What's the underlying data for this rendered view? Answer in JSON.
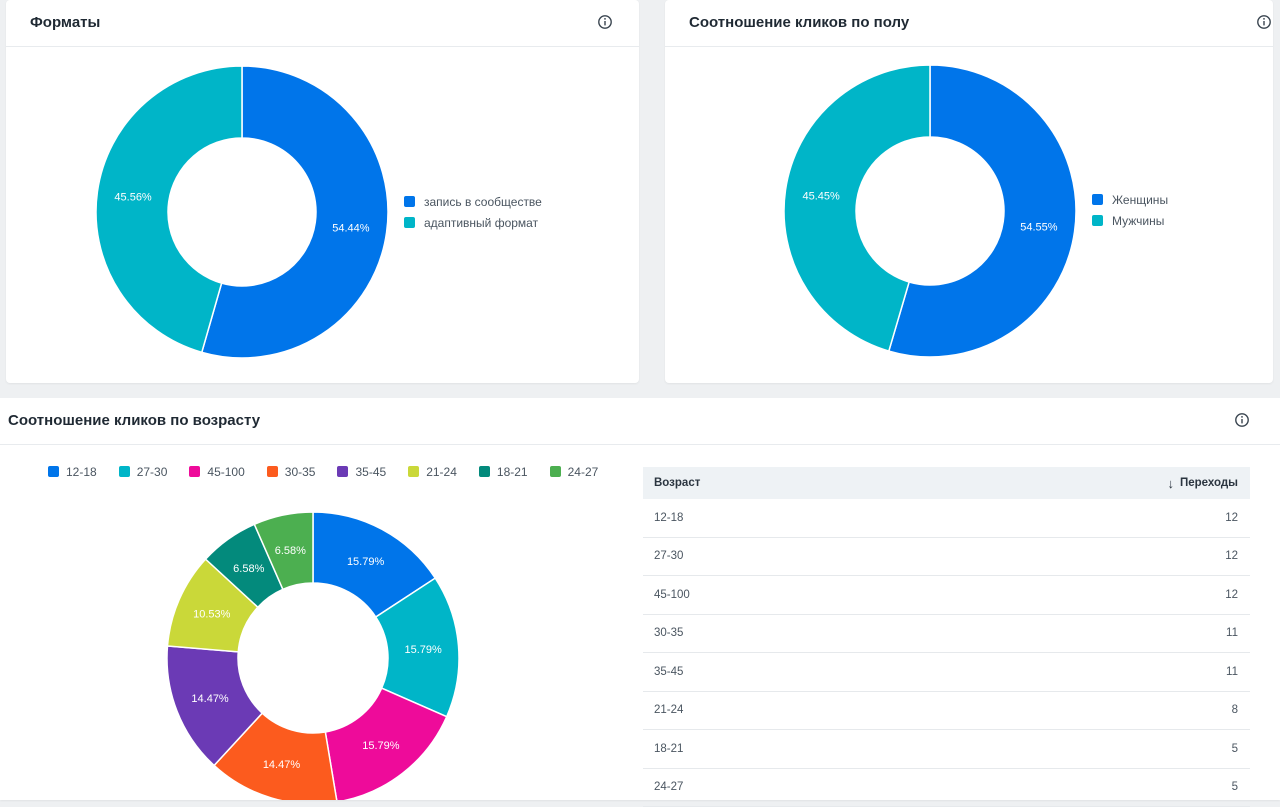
{
  "formats": {
    "title": "Форматы",
    "info_icon": "info-icon",
    "chart_data": {
      "type": "pie",
      "donut": true,
      "categories": [
        "запись в сообществе",
        "адаптивный формат"
      ],
      "values": [
        54.44,
        45.56
      ],
      "labels": [
        "54.44%",
        "45.56%"
      ],
      "colors": [
        "#0075ea",
        "#00b5c8"
      ],
      "legend_position": "right"
    }
  },
  "gender": {
    "title": "Соотношение кликов по полу",
    "info_icon": "info-icon",
    "chart_data": {
      "type": "pie",
      "donut": true,
      "categories": [
        "Женщины",
        "Мужчины"
      ],
      "values": [
        54.55,
        45.45
      ],
      "labels": [
        "54.55%",
        "45.45%"
      ],
      "colors": [
        "#0075ea",
        "#00b5c8"
      ],
      "legend_position": "right"
    }
  },
  "age": {
    "title": "Соотношение кликов по возрасту",
    "info_icon": "info-icon",
    "chart_data": {
      "type": "pie",
      "donut": true,
      "categories": [
        "12-18",
        "27-30",
        "45-100",
        "30-35",
        "35-45",
        "21-24",
        "18-21",
        "24-27"
      ],
      "values": [
        15.79,
        15.79,
        15.79,
        14.47,
        14.47,
        10.53,
        6.58,
        6.58
      ],
      "labels": [
        "15.79%",
        "15.79%",
        "15.79%",
        "14.47%",
        "14.47%",
        "10.53%",
        "6.58%",
        "6.58%"
      ],
      "colors": [
        "#0075ea",
        "#00b5c8",
        "#ee0b9a",
        "#fc5b1e",
        "#6b3ab5",
        "#cad839",
        "#038a7c",
        "#4caf50"
      ],
      "legend_position": "top"
    },
    "table": {
      "col_age": "Возраст",
      "col_clicks": "Переходы",
      "sort_icon": "arrow-down-icon",
      "rows": [
        {
          "age": "12-18",
          "clicks": "12"
        },
        {
          "age": "27-30",
          "clicks": "12"
        },
        {
          "age": "45-100",
          "clicks": "12"
        },
        {
          "age": "30-35",
          "clicks": "11"
        },
        {
          "age": "35-45",
          "clicks": "11"
        },
        {
          "age": "21-24",
          "clicks": "8"
        },
        {
          "age": "18-21",
          "clicks": "5"
        },
        {
          "age": "24-27",
          "clicks": "5"
        }
      ]
    }
  }
}
